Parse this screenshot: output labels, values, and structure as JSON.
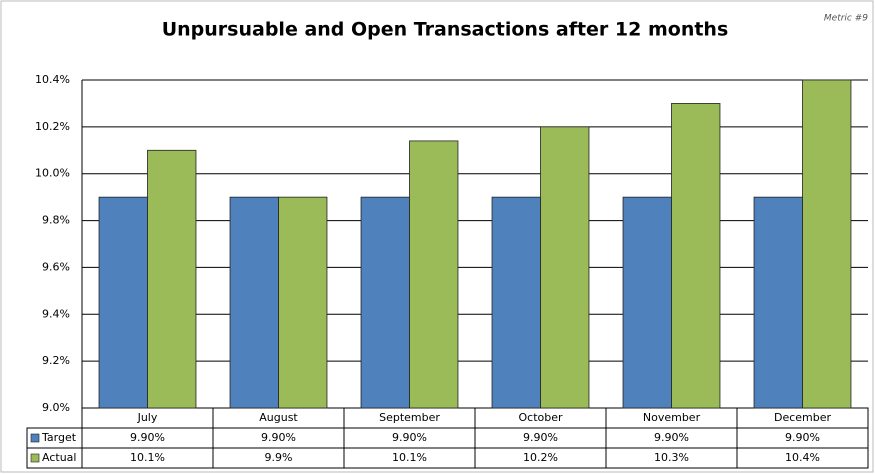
{
  "chart_data": {
    "type": "bar",
    "title": "Unpursuable and Open Transactions after 12 months",
    "annotation": "Metric #9",
    "categories": [
      "July",
      "August",
      "September",
      "October",
      "November",
      "December"
    ],
    "series": [
      {
        "name": "Target",
        "color": "#4f81bd",
        "values": [
          9.9,
          9.9,
          9.9,
          9.9,
          9.9,
          9.9
        ],
        "value_labels": [
          "9.90%",
          "9.90%",
          "9.90%",
          "9.90%",
          "9.90%",
          "9.90%"
        ]
      },
      {
        "name": "Actual",
        "color": "#9bbb59",
        "values": [
          10.1,
          9.9,
          10.14,
          10.2,
          10.3,
          10.4
        ],
        "value_labels": [
          "10.1%",
          "9.9%",
          "10.1%",
          "10.2%",
          "10.3%",
          "10.4%"
        ]
      }
    ],
    "ylim": [
      9.0,
      10.4
    ],
    "yticks": [
      {
        "value": 9.0,
        "label": "9.0%"
      },
      {
        "value": 9.2,
        "label": "9.2%"
      },
      {
        "value": 9.4,
        "label": "9.4%"
      },
      {
        "value": 9.6,
        "label": "9.6%"
      },
      {
        "value": 9.8,
        "label": "9.8%"
      },
      {
        "value": 10.0,
        "label": "10.0%"
      },
      {
        "value": 10.2,
        "label": "10.2%"
      },
      {
        "value": 10.4,
        "label": "10.4%"
      }
    ],
    "grid": true
  }
}
